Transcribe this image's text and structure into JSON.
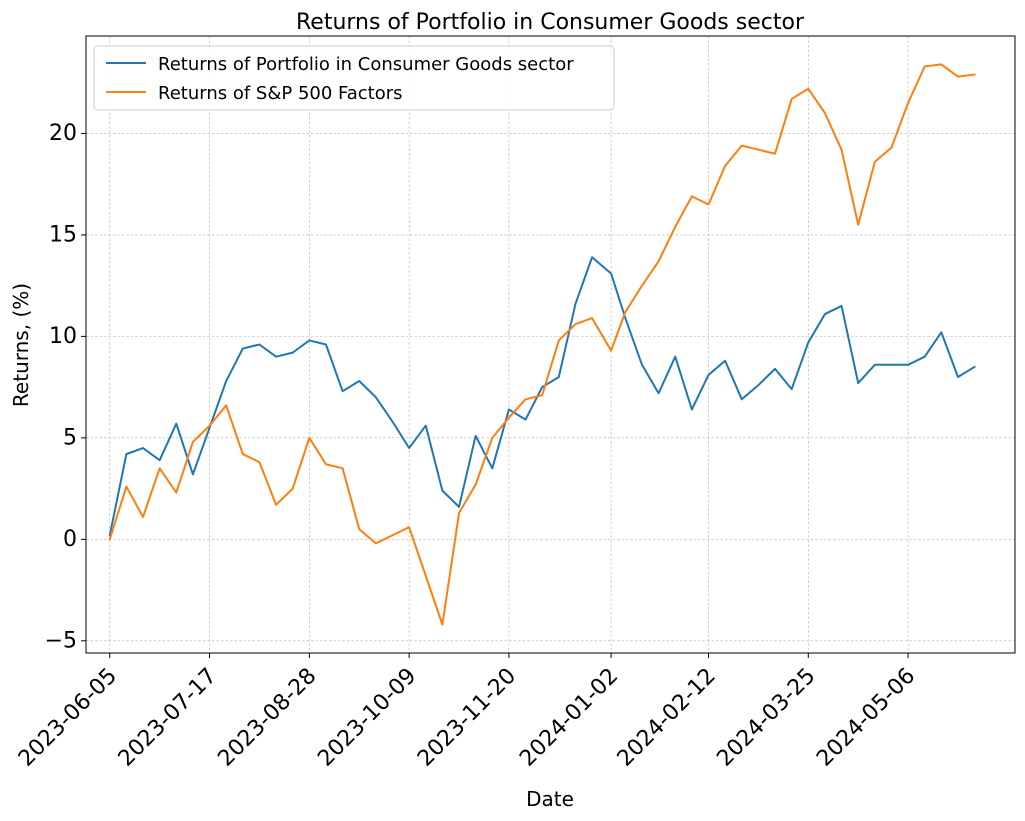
{
  "chart_data": {
    "type": "line",
    "title": "Returns of Portfolio in Consumer Goods sector",
    "xlabel": "Date",
    "ylabel": "Returns, (%)",
    "grid": true,
    "legend_position": "top-left",
    "ylim": [
      -5.6,
      24.8
    ],
    "yticks": [
      -5,
      0,
      5,
      10,
      15,
      20
    ],
    "xlim": [
      "2023-05-26",
      "2024-06-20"
    ],
    "xticks": [
      "2023-06-05",
      "2023-07-17",
      "2023-08-28",
      "2023-10-09",
      "2023-11-20",
      "2024-01-02",
      "2024-02-12",
      "2024-03-25",
      "2024-05-06"
    ],
    "x": [
      "2023-06-05",
      "2023-06-12",
      "2023-06-19",
      "2023-06-26",
      "2023-07-03",
      "2023-07-10",
      "2023-07-17",
      "2023-07-24",
      "2023-07-31",
      "2023-08-07",
      "2023-08-14",
      "2023-08-21",
      "2023-08-28",
      "2023-09-04",
      "2023-09-11",
      "2023-09-18",
      "2023-09-25",
      "2023-10-02",
      "2023-10-09",
      "2023-10-16",
      "2023-10-23",
      "2023-10-30",
      "2023-11-06",
      "2023-11-13",
      "2023-11-20",
      "2023-11-27",
      "2023-12-04",
      "2023-12-11",
      "2023-12-18",
      "2023-12-25",
      "2024-01-02",
      "2024-01-08",
      "2024-01-15",
      "2024-01-22",
      "2024-01-29",
      "2024-02-05",
      "2024-02-12",
      "2024-02-19",
      "2024-02-26",
      "2024-03-04",
      "2024-03-11",
      "2024-03-18",
      "2024-03-25",
      "2024-04-01",
      "2024-04-08",
      "2024-04-15",
      "2024-04-22",
      "2024-04-29",
      "2024-05-06",
      "2024-05-13",
      "2024-05-20",
      "2024-05-27",
      "2024-06-03"
    ],
    "series": [
      {
        "name": "Returns of Portfolio in Consumer Goods sector",
        "color": "#1f77b4",
        "values": [
          0.2,
          4.2,
          4.5,
          3.9,
          5.7,
          3.2,
          5.5,
          7.8,
          9.4,
          9.6,
          9.0,
          9.2,
          9.8,
          9.6,
          7.3,
          7.8,
          7.0,
          5.8,
          4.5,
          5.6,
          2.4,
          1.6,
          5.1,
          3.5,
          6.4,
          5.9,
          7.5,
          8.0,
          11.6,
          13.9,
          13.1,
          10.9,
          8.6,
          7.2,
          9.0,
          6.4,
          8.1,
          8.8,
          6.9,
          7.6,
          8.4,
          7.4,
          9.7,
          11.1,
          11.5,
          7.7,
          8.6,
          8.6,
          8.6,
          9.0,
          10.2,
          8.0,
          8.5
        ]
      },
      {
        "name": "Returns of S&P 500 Factors",
        "color": "#ff7f0e",
        "values": [
          0.0,
          2.6,
          1.1,
          3.5,
          2.3,
          4.8,
          5.6,
          6.6,
          4.2,
          3.8,
          1.7,
          2.5,
          5.0,
          3.7,
          3.5,
          0.5,
          -0.2,
          0.2,
          0.6,
          -1.8,
          -4.2,
          1.3,
          2.7,
          5.0,
          6.0,
          6.9,
          7.1,
          9.8,
          10.6,
          10.9,
          9.3,
          11.2,
          12.5,
          13.7,
          15.4,
          16.9,
          16.5,
          18.4,
          19.4,
          19.2,
          19.0,
          21.7,
          22.2,
          21.0,
          19.2,
          15.5,
          18.6,
          19.3,
          21.5,
          23.3,
          23.4,
          22.8,
          22.9
        ]
      }
    ]
  }
}
